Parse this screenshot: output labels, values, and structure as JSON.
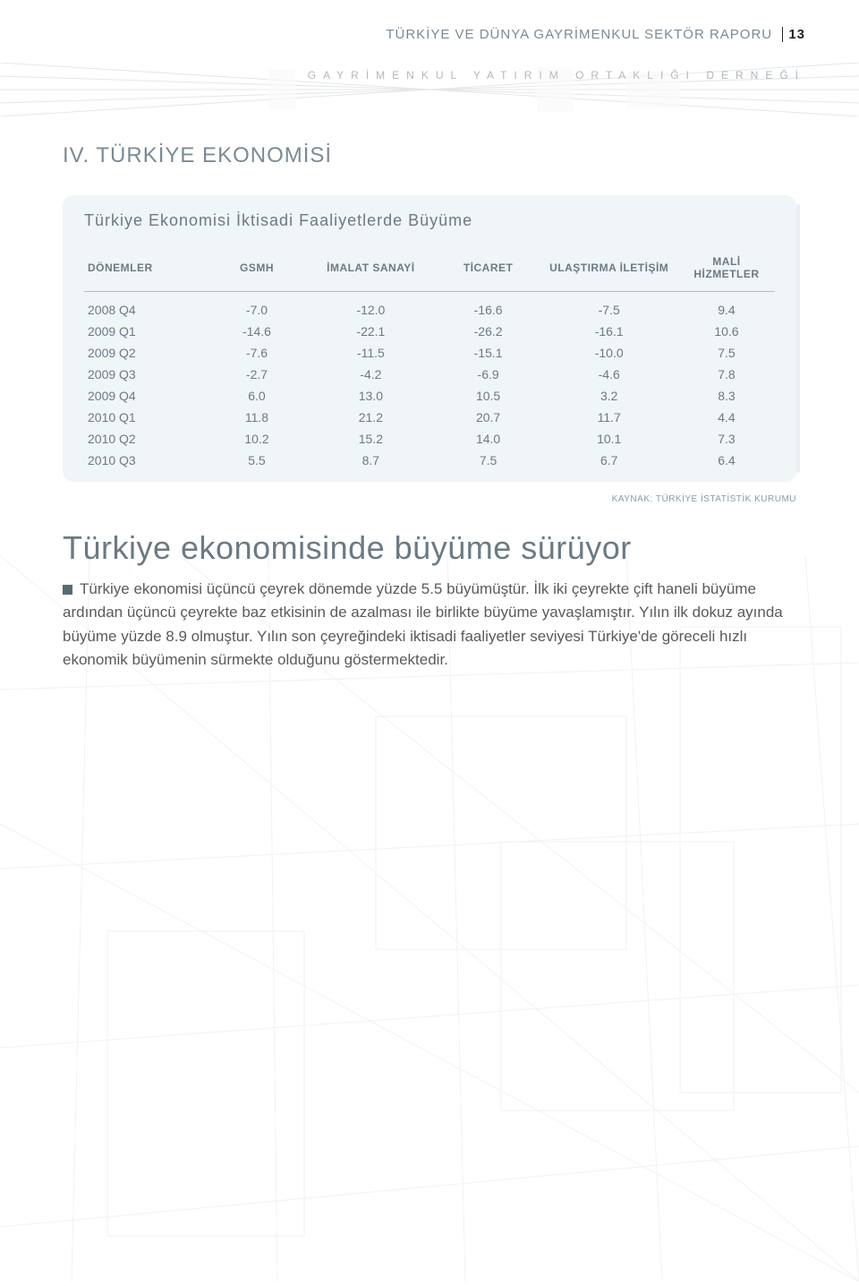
{
  "header": {
    "running_title": "TÜRKİYE VE DÜNYA GAYRİMENKUL SEKTÖR RAPORU",
    "page_number": "13",
    "running_sub": "GAYRİMENKUL YATIRIM ORTAKLIĞI DERNEĞİ"
  },
  "section": {
    "title": "IV. TÜRKİYE EKONOMİSİ"
  },
  "table": {
    "title": "Türkiye Ekonomisi İktisadi Faaliyetlerde Büyüme",
    "columns": [
      "DÖNEMLER",
      "GSMH",
      "İMALAT SANAYİ",
      "TİCARET",
      "ULAŞTIRMA İLETİŞİM",
      "MALİ HİZMETLER"
    ],
    "rows": [
      [
        "2008 Q4",
        "-7.0",
        "-12.0",
        "-16.6",
        "-7.5",
        "9.4"
      ],
      [
        "2009 Q1",
        "-14.6",
        "-22.1",
        "-26.2",
        "-16.1",
        "10.6"
      ],
      [
        "2009 Q2",
        "-7.6",
        "-11.5",
        "-15.1",
        "-10.0",
        "7.5"
      ],
      [
        "2009 Q3",
        "-2.7",
        "-4.2",
        "-6.9",
        "-4.6",
        "7.8"
      ],
      [
        "2009 Q4",
        "6.0",
        "13.0",
        "10.5",
        "3.2",
        "8.3"
      ],
      [
        "2010 Q1",
        "11.8",
        "21.2",
        "20.7",
        "11.7",
        "4.4"
      ],
      [
        "2010 Q2",
        "10.2",
        "15.2",
        "14.0",
        "10.1",
        "7.3"
      ],
      [
        "2010 Q3",
        "5.5",
        "8.7",
        "7.5",
        "6.7",
        "6.4"
      ]
    ],
    "source": "KAYNAK: TÜRKİYE İSTATİSTİK KURUMU",
    "col_widths_pct": [
      18,
      14,
      19,
      15,
      20,
      14
    ]
  },
  "body": {
    "title": "Türkiye ekonomisinde büyüme sürüyor",
    "paragraph": "Türkiye ekonomisi üçüncü çeyrek dönemde yüzde 5.5 büyümüştür. İlk iki çeyrekte çift haneli büyüme ardından üçüncü çeyrekte baz etkisinin de azalması ile birlikte büyüme yavaşlamıştır. Yılın ilk dokuz ayında büyüme yüzde 8.9 olmuştur. Yılın son çeyreğindeki iktisadi faaliyetler seviyesi Türkiye'de göreceli hızlı ekonomik büyümenin sürmekte olduğunu göstermektedir."
  },
  "style": {
    "accent_color": "#7b8a94",
    "text_color": "#5a5a5a",
    "table_bg": "rgba(225,235,240,0.5)"
  }
}
